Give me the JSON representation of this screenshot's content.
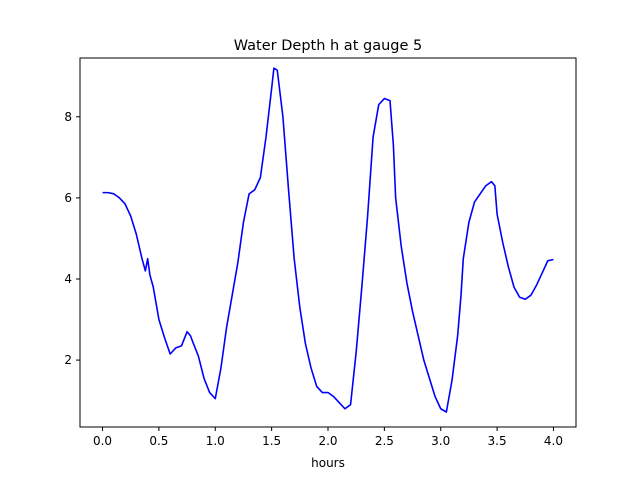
{
  "chart_data": {
    "type": "line",
    "title": "Water Depth h at gauge 5",
    "xlabel": "hours",
    "ylabel": "",
    "xlim": [
      -0.2,
      4.2
    ],
    "ylim": [
      0.35,
      9.45
    ],
    "xticks": [
      0.0,
      0.5,
      1.0,
      1.5,
      2.0,
      2.5,
      3.0,
      3.5,
      4.0
    ],
    "xtick_labels": [
      "0.0",
      "0.5",
      "1.0",
      "1.5",
      "2.0",
      "2.5",
      "3.0",
      "3.5",
      "4.0"
    ],
    "yticks": [
      2,
      4,
      6,
      8
    ],
    "ytick_labels": [
      "2",
      "4",
      "6",
      "8"
    ],
    "grid": false,
    "series": [
      {
        "color": "#0000ff",
        "x": [
          0.0,
          0.05,
          0.1,
          0.15,
          0.2,
          0.25,
          0.3,
          0.35,
          0.38,
          0.4,
          0.42,
          0.45,
          0.5,
          0.55,
          0.6,
          0.65,
          0.7,
          0.75,
          0.78,
          0.8,
          0.85,
          0.9,
          0.95,
          1.0,
          1.05,
          1.1,
          1.15,
          1.2,
          1.25,
          1.3,
          1.35,
          1.4,
          1.45,
          1.5,
          1.52,
          1.55,
          1.6,
          1.65,
          1.7,
          1.75,
          1.8,
          1.85,
          1.9,
          1.95,
          2.0,
          2.05,
          2.1,
          2.15,
          2.2,
          2.25,
          2.3,
          2.35,
          2.4,
          2.45,
          2.5,
          2.55,
          2.58,
          2.6,
          2.65,
          2.7,
          2.75,
          2.8,
          2.85,
          2.9,
          2.95,
          3.0,
          3.05,
          3.1,
          3.15,
          3.18,
          3.2,
          3.25,
          3.3,
          3.35,
          3.4,
          3.45,
          3.48,
          3.5,
          3.55,
          3.6,
          3.65,
          3.7,
          3.75,
          3.8,
          3.85,
          3.9,
          3.95,
          4.0
        ],
        "y": [
          6.13,
          6.13,
          6.1,
          6.0,
          5.85,
          5.55,
          5.1,
          4.5,
          4.2,
          4.5,
          4.1,
          3.8,
          3.0,
          2.55,
          2.15,
          2.3,
          2.35,
          2.7,
          2.6,
          2.45,
          2.1,
          1.55,
          1.2,
          1.05,
          1.8,
          2.8,
          3.6,
          4.4,
          5.4,
          6.1,
          6.2,
          6.5,
          7.5,
          8.7,
          9.2,
          9.15,
          8.0,
          6.2,
          4.5,
          3.3,
          2.4,
          1.8,
          1.35,
          1.2,
          1.2,
          1.1,
          0.95,
          0.8,
          0.9,
          2.2,
          3.8,
          5.5,
          7.5,
          8.3,
          8.45,
          8.4,
          7.3,
          6.0,
          4.8,
          3.9,
          3.2,
          2.6,
          2.0,
          1.55,
          1.1,
          0.8,
          0.72,
          1.5,
          2.6,
          3.6,
          4.5,
          5.4,
          5.9,
          6.1,
          6.3,
          6.4,
          6.3,
          5.6,
          4.9,
          4.3,
          3.8,
          3.55,
          3.5,
          3.6,
          3.85,
          4.15,
          4.45,
          4.48
        ]
      }
    ]
  }
}
